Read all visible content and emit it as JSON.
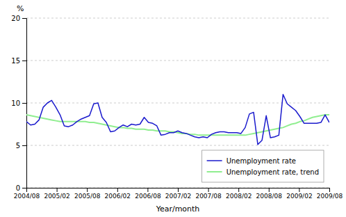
{
  "chart_data": {
    "type": "line",
    "xlabel": "Year/month",
    "ylabel": "%",
    "x": [
      0,
      0.8333,
      1.6667,
      2.5,
      3.3333,
      4.1667,
      5,
      5.8333,
      6.6667,
      7.5,
      8.3333,
      9.1667,
      10,
      10.8333,
      11.6667,
      12.5,
      13.3333,
      14.1667,
      15,
      15.8333,
      16.6667,
      17.5,
      18.3333,
      19.1667,
      20,
      20.8333,
      21.6667,
      22.5,
      23.3333,
      24.1667,
      25,
      25.8333,
      26.6667,
      27.5,
      28.3333,
      29.1667,
      30,
      30.8333,
      31.6667,
      32.5,
      33.3333,
      34.1667,
      35,
      35.8333,
      36.6667,
      37.5,
      38.3333,
      39.1667,
      40,
      40.8333,
      41.6667,
      42.5,
      43.3333,
      44.1667,
      45,
      45.8333,
      46.6667,
      47.5,
      48.3333,
      49.1667,
      50,
      50.8333,
      51.6667,
      52.5,
      53.3333,
      54.1667,
      55,
      55.8333,
      56.6667,
      57.5,
      58.3333,
      59.1667,
      60
    ],
    "series": [
      {
        "name": "Unemployment rate",
        "color": "#1a1acd",
        "values": [
          7.8,
          7.4,
          7.5,
          8.0,
          9.5,
          10.0,
          10.3,
          9.5,
          8.6,
          7.3,
          7.2,
          7.4,
          7.8,
          8.1,
          8.3,
          8.5,
          9.9,
          10.0,
          8.3,
          7.7,
          6.6,
          6.7,
          7.1,
          7.4,
          7.2,
          7.5,
          7.4,
          7.5,
          8.3,
          7.7,
          7.6,
          7.3,
          6.2,
          6.3,
          6.5,
          6.5,
          6.7,
          6.5,
          6.4,
          6.2,
          6.0,
          5.9,
          6.0,
          5.9,
          6.3,
          6.5,
          6.6,
          6.6,
          6.5,
          6.5,
          6.5,
          6.4,
          7.1,
          8.7,
          8.9,
          5.1,
          5.6,
          8.5,
          5.9,
          6.0,
          6.2,
          11.0,
          9.9,
          9.5,
          9.1,
          8.4,
          7.6,
          7.6,
          7.6,
          7.6,
          7.7,
          8.6,
          7.7
        ]
      },
      {
        "name": "Unemployment rate, trend",
        "color": "#90ee90",
        "values": [
          8.6,
          8.5,
          8.4,
          8.3,
          8.2,
          8.1,
          8.0,
          7.9,
          7.8,
          7.8,
          7.8,
          7.8,
          7.8,
          7.8,
          7.8,
          7.7,
          7.7,
          7.6,
          7.5,
          7.4,
          7.3,
          7.2,
          7.1,
          7.1,
          7.0,
          7.0,
          6.9,
          6.9,
          6.9,
          6.8,
          6.8,
          6.7,
          6.7,
          6.7,
          6.6,
          6.6,
          6.5,
          6.4,
          6.4,
          6.3,
          6.3,
          6.2,
          6.2,
          6.2,
          6.2,
          6.2,
          6.2,
          6.2,
          6.2,
          6.2,
          6.2,
          6.2,
          6.2,
          6.3,
          6.4,
          6.5,
          6.6,
          6.7,
          6.8,
          6.9,
          7.0,
          7.1,
          7.3,
          7.5,
          7.6,
          7.8,
          7.9,
          8.1,
          8.3,
          8.4,
          8.5,
          8.6,
          8.6
        ]
      }
    ],
    "xlim": [
      0,
      60
    ],
    "xticks": [
      {
        "value": 0,
        "label": "2004/08"
      },
      {
        "value": 6,
        "label": "2005/02"
      },
      {
        "value": 12,
        "label": "2005/08"
      },
      {
        "value": 18,
        "label": "2006/02"
      },
      {
        "value": 24,
        "label": "2006/08"
      },
      {
        "value": 30,
        "label": "2007/02"
      },
      {
        "value": 36,
        "label": "2007/08"
      },
      {
        "value": 42,
        "label": "2008/02"
      },
      {
        "value": 48,
        "label": "2008/08"
      },
      {
        "value": 54,
        "label": "2009/02"
      },
      {
        "value": 60,
        "label": "2009/08"
      }
    ],
    "ylim": [
      0,
      20
    ],
    "yticks": [
      0,
      5,
      10,
      15,
      20
    ],
    "grid": true,
    "legend": "lower right"
  }
}
